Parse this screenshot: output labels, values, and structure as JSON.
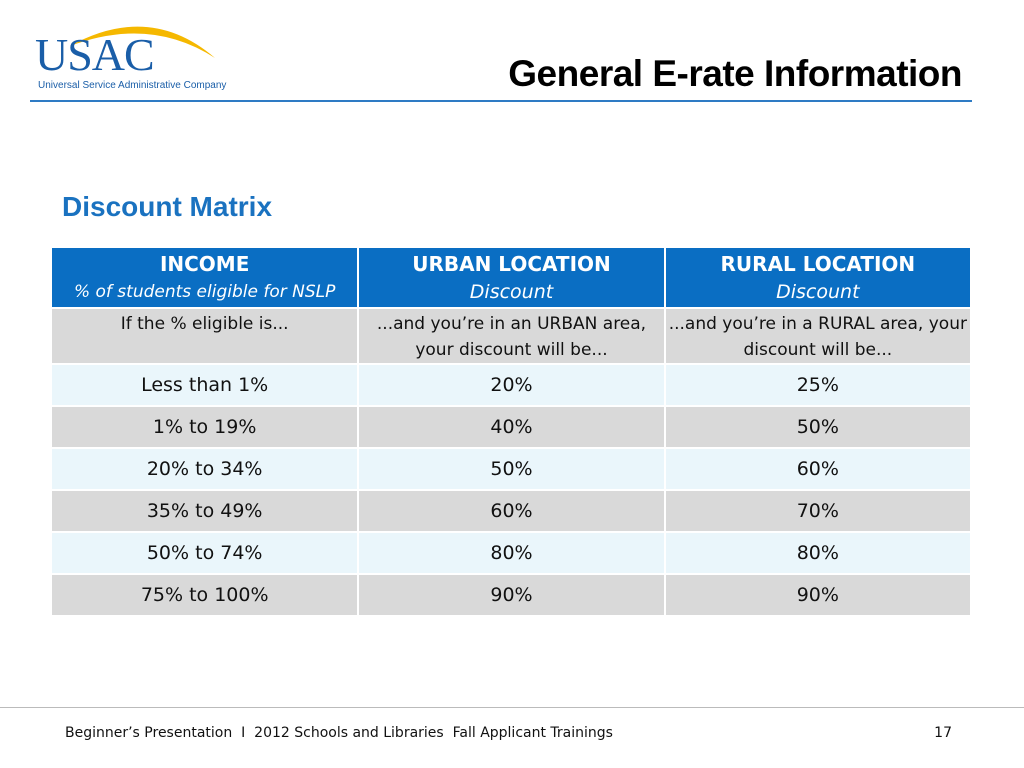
{
  "logo": {
    "text": "USAC",
    "subtitle": "Universal Service Administrative Company",
    "arc_color": "#f5b800",
    "brand_color": "#1a5ea8"
  },
  "title": "General E-rate Information",
  "section_heading": "Discount Matrix",
  "table": {
    "headers": [
      {
        "title": "INCOME",
        "sub": "% of students eligible for NSLP"
      },
      {
        "title": "URBAN LOCATION",
        "sub": "Discount"
      },
      {
        "title": "RURAL LOCATION",
        "sub": "Discount"
      }
    ],
    "explainer": [
      "If the % eligible is...",
      "...and you’re in an URBAN area, your discount will be...",
      "...and you’re in a RURAL area, your discount will be..."
    ],
    "rows": [
      [
        "Less than 1%",
        "20%",
        "25%"
      ],
      [
        "1% to 19%",
        "40%",
        "50%"
      ],
      [
        "20% to 34%",
        "50%",
        "60%"
      ],
      [
        "35% to 49%",
        "60%",
        "70%"
      ],
      [
        "50% to 74%",
        "80%",
        "80%"
      ],
      [
        "75% to 100%",
        "90%",
        "90%"
      ]
    ]
  },
  "footer": {
    "text": "Beginner’s Presentation  I  2012 Schools and Libraries  Fall Applicant Trainings",
    "page": "17"
  }
}
